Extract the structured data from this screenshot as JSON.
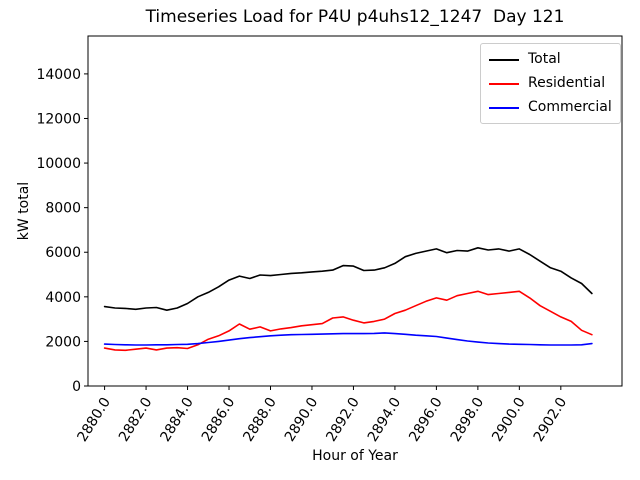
{
  "chart_data": {
    "type": "line",
    "title": "Timeseries Load for P4U p4uhs12_1247  Day 121",
    "xlabel": "Hour of Year",
    "ylabel": "kW total",
    "xlim": [
      2879.2,
      2904.95
    ],
    "ylim": [
      0,
      15700
    ],
    "grid": false,
    "legend_position": "upper right",
    "xtick_labels": [
      "2880.0",
      "2882.0",
      "2884.0",
      "2886.0",
      "2888.0",
      "2890.0",
      "2892.0",
      "2894.0",
      "2896.0",
      "2898.0",
      "2900.0",
      "2902.0"
    ],
    "ytick_labels": [
      "0",
      "2000",
      "4000",
      "6000",
      "8000",
      "10000",
      "12000",
      "14000"
    ],
    "x": [
      2880.0,
      2880.5,
      2881.0,
      2881.5,
      2882.0,
      2882.5,
      2883.0,
      2883.5,
      2884.0,
      2884.5,
      2885.0,
      2885.5,
      2886.0,
      2886.5,
      2887.0,
      2887.5,
      2888.0,
      2888.5,
      2889.0,
      2889.5,
      2890.0,
      2890.5,
      2891.0,
      2891.5,
      2892.0,
      2892.5,
      2893.0,
      2893.5,
      2894.0,
      2894.5,
      2895.0,
      2895.5,
      2896.0,
      2896.5,
      2897.0,
      2897.5,
      2898.0,
      2898.5,
      2899.0,
      2899.5,
      2900.0,
      2900.5,
      2901.0,
      2901.5,
      2902.0,
      2902.5,
      2903.0,
      2903.5
    ],
    "series": [
      {
        "name": "Total",
        "color": "#000000",
        "values": [
          3560,
          3500,
          3480,
          3440,
          3500,
          3520,
          3400,
          3500,
          3700,
          4000,
          4200,
          4450,
          4750,
          4930,
          4820,
          4980,
          4950,
          5000,
          5050,
          5080,
          5120,
          5150,
          5200,
          5400,
          5380,
          5180,
          5200,
          5300,
          5500,
          5800,
          5950,
          6050,
          6150,
          5980,
          6080,
          6050,
          6200,
          6100,
          6150,
          6050,
          6150,
          5900,
          5600,
          5300,
          5150,
          4850,
          4600,
          4150
        ]
      },
      {
        "name": "Residential",
        "color": "#ff0000",
        "values": [
          1700,
          1620,
          1600,
          1650,
          1700,
          1620,
          1700,
          1720,
          1680,
          1850,
          2100,
          2250,
          2470,
          2780,
          2550,
          2650,
          2470,
          2560,
          2620,
          2700,
          2750,
          2800,
          3050,
          3100,
          2950,
          2830,
          2900,
          3000,
          3250,
          3400,
          3600,
          3800,
          3950,
          3850,
          4050,
          4150,
          4250,
          4100,
          4150,
          4200,
          4250,
          3950,
          3600,
          3350,
          3100,
          2900,
          2500,
          2300
        ]
      },
      {
        "name": "Commercial",
        "color": "#0000ff",
        "values": [
          1880,
          1860,
          1850,
          1840,
          1840,
          1850,
          1850,
          1860,
          1870,
          1900,
          1950,
          2000,
          2060,
          2120,
          2170,
          2210,
          2250,
          2280,
          2300,
          2310,
          2320,
          2330,
          2340,
          2350,
          2350,
          2350,
          2360,
          2380,
          2350,
          2320,
          2280,
          2250,
          2220,
          2150,
          2080,
          2020,
          1970,
          1930,
          1900,
          1880,
          1870,
          1860,
          1850,
          1840,
          1840,
          1840,
          1850,
          1900
        ]
      }
    ]
  }
}
